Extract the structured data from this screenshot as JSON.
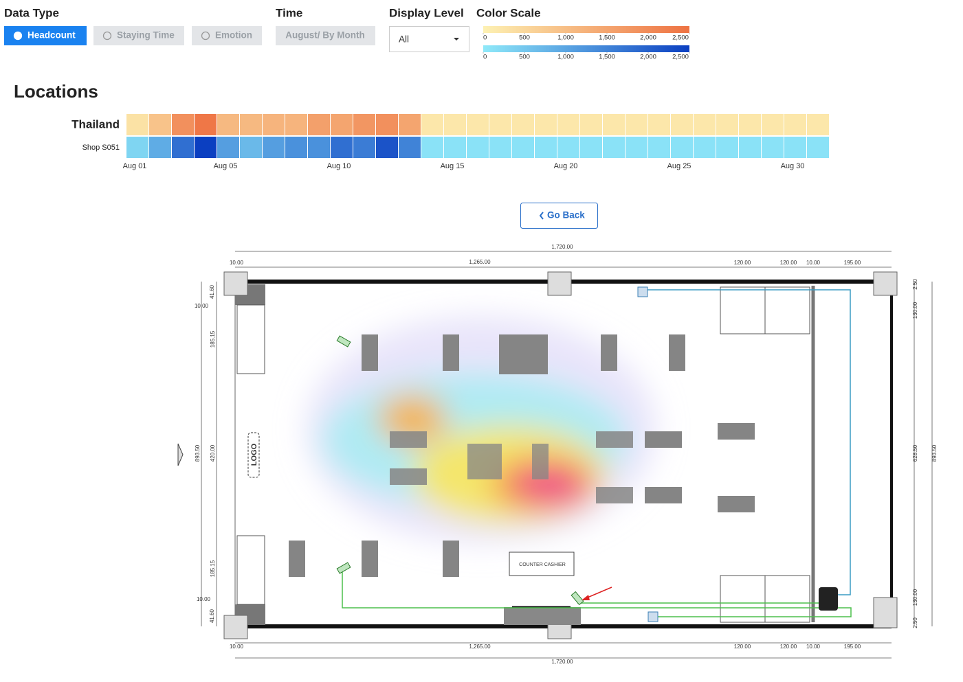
{
  "controls": {
    "data_type": {
      "label": "Data Type",
      "options": [
        "Headcount",
        "Staying Time",
        "Emotion"
      ]
    },
    "time": {
      "label": "Time",
      "value": "August/ By Month"
    },
    "display_level": {
      "label": "Display Level",
      "value": "All"
    },
    "color_scale": {
      "label": "Color Scale",
      "warm": {
        "colors": [
          "#fdf1b3",
          "#ee7242"
        ],
        "lim": [
          0,
          2500
        ],
        "ticks": [
          0,
          500,
          {
            "value": 1000,
            "label": "1,000"
          },
          {
            "value": 1500,
            "label": "1,500"
          },
          {
            "value": 2000,
            "label": "2,000"
          },
          {
            "value": 2500,
            "label": "2,500"
          }
        ]
      },
      "cool": {
        "colors": [
          "#8fe9f9",
          "#0b3fc1"
        ],
        "lim": [
          0,
          2500
        ],
        "ticks": [
          0,
          500,
          {
            "value": 1000,
            "label": "1,000"
          },
          {
            "value": 1500,
            "label": "1,500"
          },
          {
            "value": 2000,
            "label": "2,000"
          },
          {
            "value": 2500,
            "label": "2,500"
          }
        ]
      }
    }
  },
  "locations": {
    "title": "Locations",
    "categories": [
      "Aug 01",
      null,
      null,
      null,
      "Aug 05",
      null,
      null,
      null,
      null,
      "Aug 10",
      null,
      null,
      null,
      null,
      "Aug 15",
      null,
      null,
      null,
      null,
      "Aug 20",
      null,
      null,
      null,
      null,
      "Aug 25",
      null,
      null,
      null,
      null,
      "Aug 30",
      null
    ],
    "rows": [
      {
        "name": "Thailand",
        "scale": "warm",
        "values": [
          300,
          900,
          1900,
          2400,
          1100,
          1100,
          1200,
          1200,
          1600,
          1500,
          1800,
          1900,
          1500,
          200,
          200,
          200,
          200,
          200,
          200,
          200,
          200,
          200,
          200,
          200,
          200,
          200,
          200,
          200,
          200,
          200,
          200
        ]
      },
      {
        "name": "Shop S051",
        "scale": "cool",
        "values": [
          300,
          900,
          1800,
          2500,
          1100,
          700,
          1100,
          1300,
          1300,
          1800,
          1600,
          2200,
          1500,
          100,
          100,
          100,
          100,
          100,
          100,
          100,
          100,
          100,
          100,
          100,
          100,
          100,
          100,
          100,
          100,
          100,
          100
        ]
      }
    ]
  },
  "go_back": "Go Back",
  "floor_plan": {
    "labels": [
      "1,720.00",
      "1,265.00",
      "120.00",
      "120.00",
      "10.00",
      "195.00",
      "10.00",
      "10.00",
      "41.60",
      "185.15",
      "420.00",
      "893.50",
      "185.15",
      "10.00",
      "41.60",
      "10.00",
      "1,265.00",
      "120.00",
      "120.00",
      "10.00",
      "195.00",
      "1,720.00",
      "2.50",
      "130.00",
      "628.50",
      "893.50",
      "130.00",
      "2.50",
      "LOGO",
      "COUNTER CASHIER"
    ]
  }
}
